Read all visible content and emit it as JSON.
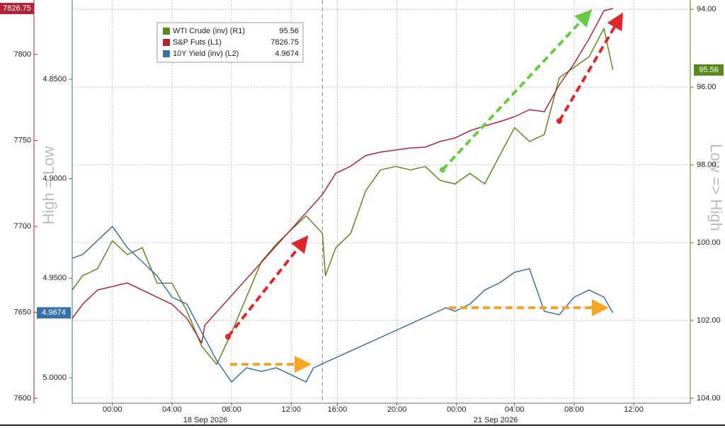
{
  "chart_data": {
    "type": "line",
    "left_axis_title": "High = Low",
    "right_axis_title": "Low => High",
    "date_labels": [
      "18 Sep 2026",
      "21 Sep 2026"
    ],
    "session_break": 14.1,
    "grid": true,
    "xlim": [
      -2.7,
      38.8
    ],
    "xticks": [
      {
        "value": 0,
        "label": "00:00"
      },
      {
        "value": 4,
        "label": "04:00"
      },
      {
        "value": 8,
        "label": "08:00"
      },
      {
        "value": 12,
        "label": "12:00"
      },
      {
        "value": 15.1,
        "label": "16:00"
      },
      {
        "value": 19.1,
        "label": "20:00"
      },
      {
        "value": 23.1,
        "label": "00:00"
      },
      {
        "value": 27,
        "label": "04:00"
      },
      {
        "value": 31,
        "label": "08:00"
      },
      {
        "value": 35,
        "label": "12:00"
      }
    ],
    "ylim": [
      7597.1,
      7831.7
    ],
    "yticks": [
      7600,
      7650,
      7700,
      7750,
      7800
    ],
    "y2lim": [
      5.0128,
      4.8102
    ],
    "y2ticks": [
      {
        "value": 4.85,
        "label": "4.8500"
      },
      {
        "value": 4.9,
        "label": "4.9000"
      },
      {
        "value": 4.95,
        "label": "4.9500"
      },
      {
        "value": 5.0,
        "label": "5.0000"
      }
    ],
    "y3lim": [
      104.13,
      93.76
    ],
    "y3ticks": [
      {
        "value": 94,
        "label": "94.00"
      },
      {
        "value": 96,
        "label": "96.00"
      },
      {
        "value": 98,
        "label": "98.00"
      },
      {
        "value": 100,
        "label": "100.00"
      },
      {
        "value": 102,
        "label": "102.00"
      },
      {
        "value": 104,
        "label": "104.00"
      }
    ],
    "series": [
      {
        "name": "WTI Crude (inv) (R1)",
        "color": "#5a8a1e",
        "axis": "y3",
        "legend_value": 95.56,
        "x": [
          -2.7,
          -2,
          -1,
          0,
          1,
          2,
          3,
          4,
          5,
          6,
          7,
          8,
          9,
          10,
          11,
          12,
          13,
          14.1,
          14.3,
          15,
          16,
          17,
          18,
          19,
          20,
          21,
          22,
          23,
          24,
          25,
          26,
          27,
          28,
          29,
          30,
          31,
          32,
          33,
          33.6
        ],
        "values": [
          101.22,
          100.85,
          100.67,
          99.95,
          100.31,
          100.13,
          101.04,
          101.04,
          101.76,
          102.67,
          103.13,
          102.31,
          101.4,
          100.49,
          100.04,
          99.67,
          99.31,
          99.76,
          100.85,
          100.13,
          99.76,
          98.67,
          98.13,
          98.04,
          98.13,
          98.04,
          98.4,
          98.49,
          98.22,
          98.49,
          97.76,
          97.04,
          97.4,
          97.22,
          95.76,
          95.49,
          95.22,
          94.49,
          95.56
        ]
      },
      {
        "name": "S&P Futs (L1)",
        "color": "#b0243a",
        "axis": "y",
        "legend_value": 7826.75,
        "x": [
          -2.7,
          -2,
          -1,
          0,
          1,
          2,
          3,
          4,
          5,
          6,
          6.2,
          14.1,
          15,
          16,
          17,
          18,
          19,
          20,
          21,
          22,
          23,
          24,
          25,
          26,
          27,
          28,
          29,
          30,
          31,
          32,
          33,
          33.6
        ],
        "values": [
          7646.5,
          7654.7,
          7663.0,
          7665.0,
          7667.1,
          7663.0,
          7658.8,
          7654.7,
          7646.5,
          7632.1,
          7642.4,
          7718.5,
          7730.9,
          7735.0,
          7741.2,
          7743.2,
          7744.4,
          7745.6,
          7746.1,
          7749.4,
          7751.4,
          7755.6,
          7758.4,
          7760.9,
          7763.8,
          7767.9,
          7766.7,
          7782.3,
          7794.7,
          7809.1,
          7825.5,
          7826.75
        ]
      },
      {
        "name": "10Y Yield (inv) (L2)",
        "color": "#3b6fa8",
        "axis": "y2",
        "legend_value": 4.9674,
        "x": [
          -2.7,
          -2,
          -1,
          0,
          1,
          2,
          3,
          4,
          5,
          6,
          7,
          8,
          9,
          10,
          11,
          12,
          13,
          13.5,
          22.4,
          23,
          24,
          25,
          26,
          27,
          28,
          29,
          30,
          31,
          32,
          33,
          33.6
        ],
        "values": [
          4.9399,
          4.9381,
          4.931,
          4.9239,
          4.9346,
          4.9417,
          4.9488,
          4.9595,
          4.963,
          4.9772,
          4.9914,
          5.0021,
          4.995,
          4.9968,
          4.995,
          4.9985,
          5.0021,
          4.995,
          4.9648,
          4.9666,
          4.963,
          4.9559,
          4.9523,
          4.947,
          4.9452,
          4.9666,
          4.9683,
          4.9595,
          4.9559,
          4.9595,
          4.9674
        ]
      }
    ]
  }
}
